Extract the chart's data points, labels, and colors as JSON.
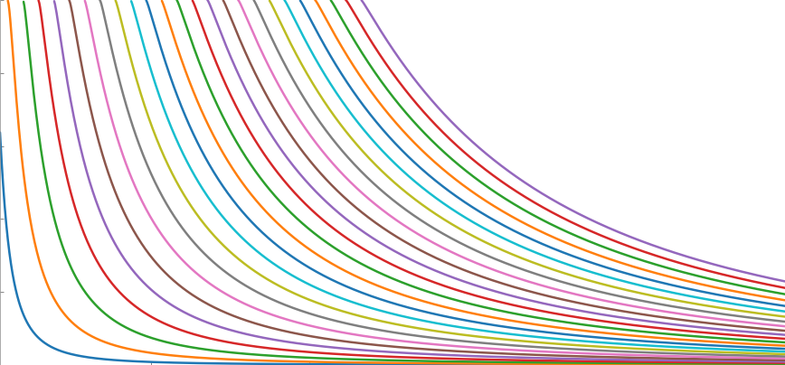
{
  "V0": 10.0,
  "figsize": [
    8.68,
    4.04
  ],
  "dpi": 100,
  "linewidth": 1.8,
  "n_curves": 25,
  "L_min": 0.1,
  "L_max": 10.0,
  "n_points": 1000,
  "xlim": [
    0.1,
    10.0
  ],
  "ylim": [
    0.0,
    10.0
  ],
  "colors_cycle": [
    "#1f77b4",
    "#ff7f0e",
    "#2ca02c",
    "#d62728",
    "#9467bd",
    "#8c564b",
    "#e377c2",
    "#7f7f7f",
    "#bcbd22",
    "#17becf",
    "#1f77b4",
    "#ff7f0e",
    "#2ca02c",
    "#d62728",
    "#9467bd",
    "#8c564b",
    "#e377c2",
    "#7f7f7f",
    "#bcbd22",
    "#17becf",
    "#1f77b4",
    "#ff7f0e",
    "#2ca02c",
    "#d62728",
    "#9467bd"
  ],
  "hbar2_2m": 0.038099,
  "background": "white",
  "tick_color": "#555555"
}
